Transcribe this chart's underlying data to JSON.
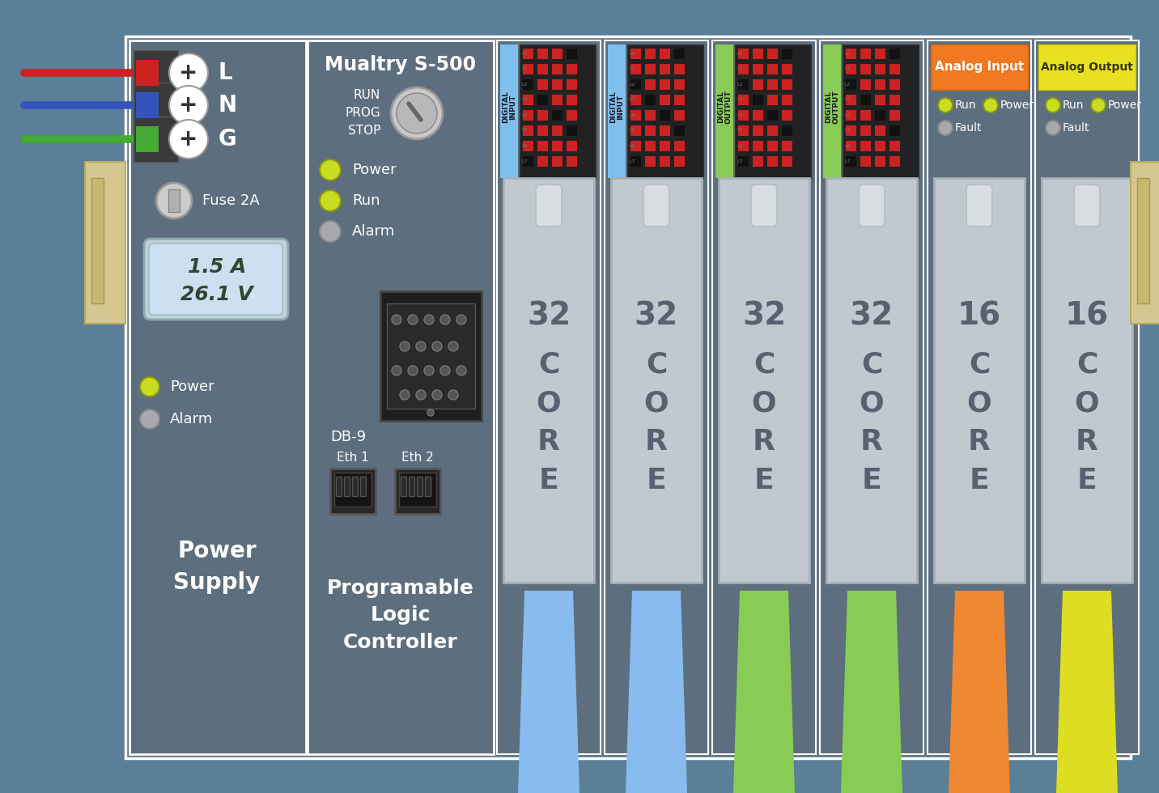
{
  "bg_color": "#5b7f96",
  "chassis_color": "#607585",
  "panel_color": "#5d6e7e",
  "panel_color2": "#647585",
  "wire_colors": [
    "#cc2222",
    "#3355bb",
    "#44aa33"
  ],
  "wire_labels": [
    "L",
    "N",
    "G"
  ],
  "led_green": "#c8dc20",
  "led_grey": "#a8a8b0",
  "din_color": "#d4c890",
  "card_color": "#c0c8d0",
  "card_handle_color": "#d8dde0",
  "display_outer": "#c0cfd8",
  "display_inner": "#cce0f0",
  "display_texts": [
    "1.5 A",
    "26.1 V"
  ],
  "slot_tab_colors": [
    "#7fbfef",
    "#7fbfef",
    "#88cc55",
    "#88cc55",
    null,
    null
  ],
  "module_labels": [
    "DIGITAL\nINPUT",
    "DIGITAL\nINPUT",
    "DIGITAL\nOUTPUT",
    "DIGITAL\nOUTPUT"
  ],
  "analog_input_color": "#f07820",
  "analog_output_color": "#e8e020",
  "slot_texts": [
    "32\nCORE",
    "32\nCORE",
    "32\nCORE",
    "32\nCORE",
    "16\nCORE",
    "16\nCORE"
  ],
  "cable_colors": [
    "#88bbee",
    "#88bbee",
    "#88cc55",
    "#88cc55",
    "#ee8833",
    "#dddd22"
  ],
  "title": "Mualtry S-500",
  "ps_label": "Power\nSupply",
  "plc_label": "Programable\nLogic\nController",
  "fuse_label": "Fuse 2A",
  "db9_label": "DB-9",
  "eth_labels": [
    "Eth 1",
    "Eth 2"
  ],
  "rps_labels": [
    "RUN",
    "PROG",
    "STOP"
  ],
  "plc_leds": [
    [
      "Power",
      "green"
    ],
    [
      "Run",
      "green"
    ],
    [
      "Alarm",
      "grey"
    ]
  ],
  "ps_leds": [
    [
      "Power",
      "green"
    ],
    [
      "Alarm",
      "grey"
    ]
  ],
  "analog_leds_1": [
    [
      "Run",
      "green"
    ],
    [
      "Power",
      "green"
    ],
    [
      "Fault",
      "grey"
    ]
  ],
  "analog_leds_2": [
    [
      "Run",
      "green"
    ],
    [
      "Power",
      "green"
    ],
    [
      "Fault",
      "grey"
    ]
  ]
}
